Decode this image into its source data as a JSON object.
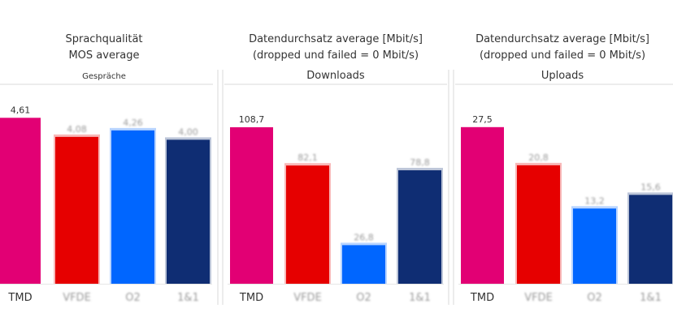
{
  "chart_data": [
    {
      "type": "bar",
      "title": "Sprachqualität",
      "title_line2": "MOS average",
      "subtitle": "Gespräche",
      "categories": [
        "TMD",
        "VFDE",
        "O2",
        "1&1"
      ],
      "values": [
        4.61,
        4.08,
        4.26,
        4.0
      ],
      "value_labels": [
        "4,61",
        "4,08",
        "4,26",
        "4,00"
      ],
      "ylim": [
        0,
        5.0
      ],
      "colors": [
        "#e20074",
        "#e60000",
        "#0066ff",
        "#0f2d73"
      ]
    },
    {
      "type": "bar",
      "title": "Datendurchsatz average [Mbit/s]",
      "title_line2": "(dropped und failed = 0 Mbit/s)",
      "subtitle": "Downloads",
      "categories": [
        "TMD",
        "VFDE",
        "O2",
        "1&1"
      ],
      "values": [
        108.7,
        82.1,
        26.8,
        78.8
      ],
      "value_labels": [
        "108,7",
        "82,1",
        "26,8",
        "78,8"
      ],
      "ylim": [
        0,
        125
      ],
      "colors": [
        "#e20074",
        "#e60000",
        "#0066ff",
        "#0f2d73"
      ]
    },
    {
      "type": "bar",
      "title": "Datendurchsatz average [Mbit/s]",
      "title_line2": "(dropped und failed = 0 Mbit/s)",
      "subtitle": "Uploads",
      "categories": [
        "TMD",
        "VFDE",
        "O2",
        "1&1"
      ],
      "values": [
        27.5,
        20.8,
        13.2,
        15.6
      ],
      "value_labels": [
        "27,5",
        "20,8",
        "13,2",
        "15,6"
      ],
      "ylim": [
        0,
        31.6
      ],
      "colors": [
        "#e20074",
        "#e60000",
        "#0066ff",
        "#0f2d73"
      ]
    }
  ]
}
